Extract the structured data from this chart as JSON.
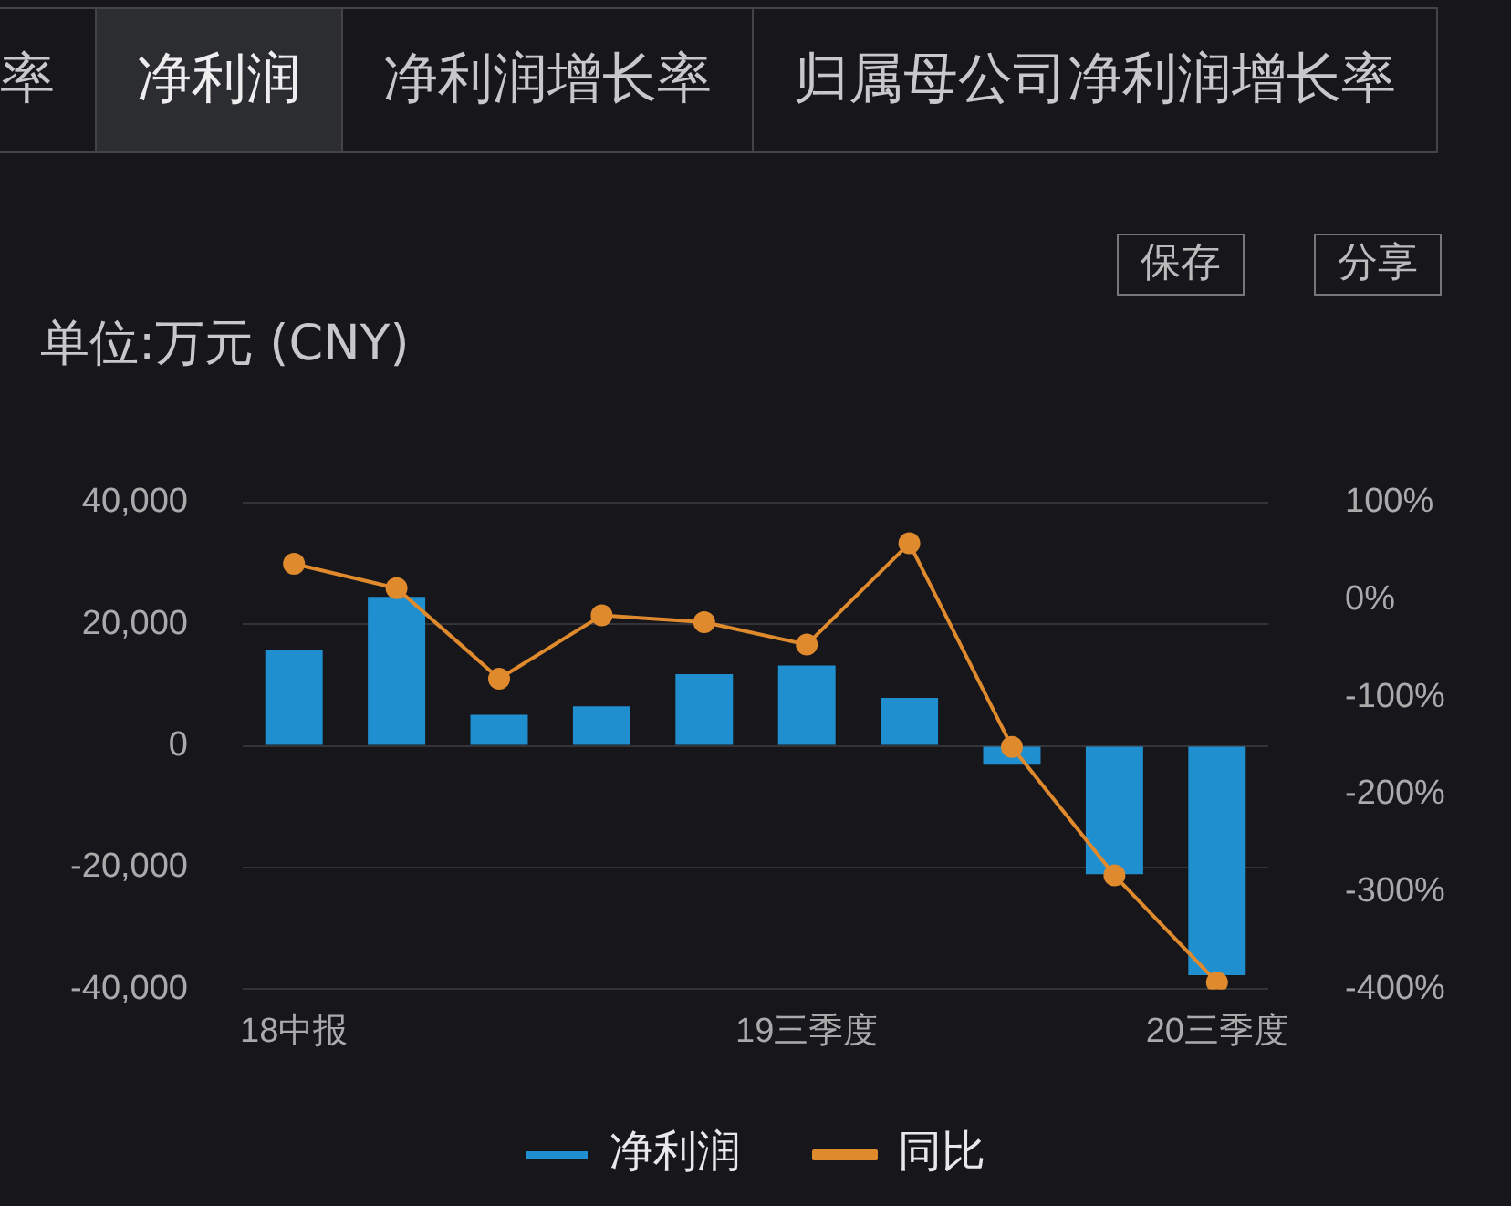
{
  "chart_data": {
    "type": "bar",
    "ylabel": "单位:万元 (CNY)",
    "annotations": [
      "率",
      "净利润",
      "净利润增长率",
      "归属母公司净利润增长率",
      "保存",
      "分享"
    ],
    "categories": [
      "18中报",
      null,
      null,
      null,
      null,
      "19三季度",
      null,
      null,
      null,
      "20三季度"
    ],
    "series": [
      {
        "name": "净利润",
        "color": "#1f8fd0",
        "values": [
          15800,
          24500,
          5100,
          6500,
          11800,
          13200,
          7900,
          -3100,
          -21100,
          -37700
        ]
      },
      {
        "name": "同比",
        "type": "line",
        "axis": "y2",
        "color": "#e08a2e",
        "values": [
          37,
          12,
          -81,
          -16,
          -23,
          -46,
          58,
          -151,
          -283,
          -393
        ]
      }
    ],
    "ylim": [
      -40000,
      40000
    ],
    "yticks": [
      {
        "value": -40000,
        "label": "-40,000"
      },
      {
        "value": -20000,
        "label": "-20,000"
      },
      0,
      {
        "value": 20000,
        "label": "20,000"
      },
      {
        "value": 40000,
        "label": "40,000"
      }
    ],
    "y2lim": [
      -400,
      100
    ],
    "y2ticks": [
      {
        "value": -400,
        "label": "-400%"
      },
      {
        "value": -300,
        "label": "-300%"
      },
      {
        "value": -200,
        "label": "-200%"
      },
      {
        "value": -100,
        "label": "-100%"
      },
      {
        "value": 0,
        "label": "0%"
      },
      {
        "value": 100,
        "label": "100%"
      }
    ],
    "grid": "y",
    "legend": "bottom",
    "marker": "circle",
    "line_style": "solid"
  }
}
